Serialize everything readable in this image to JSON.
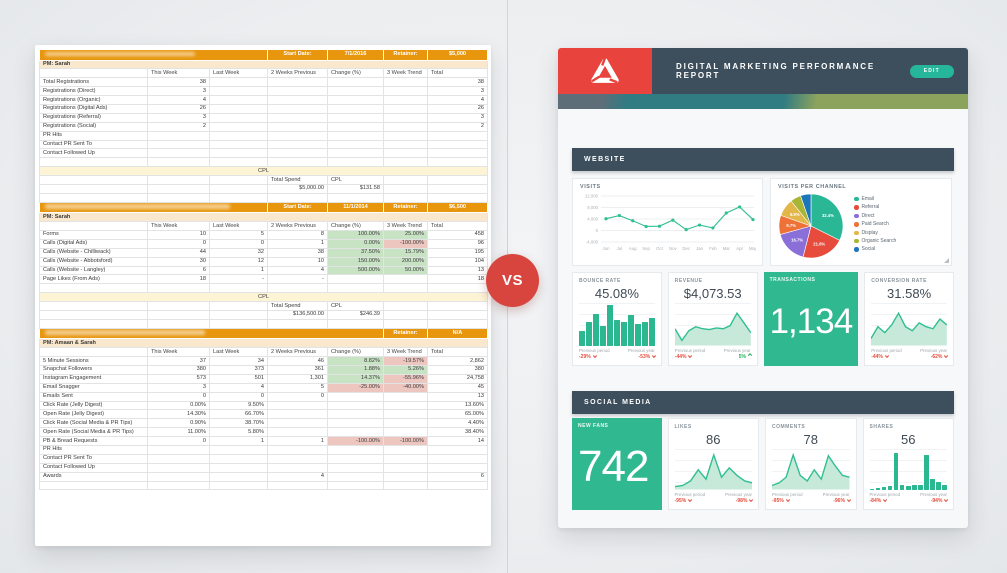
{
  "vs_label": "VS",
  "spreadsheet": {
    "sections": [
      {
        "rows": [
          {
            "type": "client",
            "span": 3,
            "rw": 150,
            "cells": [
              "Start Date:",
              "7/1/2016",
              "Retainer:",
              "$5,000"
            ]
          },
          {
            "type": "pm",
            "text": "PM: Sarah"
          },
          {
            "type": "cols",
            "cells": [
              "",
              "This Week",
              "Last Week",
              "2 Weeks Previous",
              "Change (%)",
              "3 Week Trend",
              "Total"
            ]
          },
          {
            "type": "row",
            "cells": [
              "Total Registrations",
              "38",
              "",
              "",
              "",
              "",
              "38"
            ]
          },
          {
            "type": "row",
            "cells": [
              "Registrations (Direct)",
              "3",
              "",
              "",
              "",
              "",
              "3"
            ]
          },
          {
            "type": "row",
            "cells": [
              "Registrations (Organic)",
              "4",
              "",
              "",
              "",
              "",
              "4"
            ]
          },
          {
            "type": "row",
            "cells": [
              "Registrations (Digital Ads)",
              "26",
              "",
              "",
              "",
              "",
              "26"
            ]
          },
          {
            "type": "row",
            "cells": [
              "Registrations (Referral)",
              "3",
              "",
              "",
              "",
              "",
              "3"
            ]
          },
          {
            "type": "row",
            "cells": [
              "Registrations (Social)",
              "2",
              "",
              "",
              "",
              "",
              "2"
            ]
          },
          {
            "type": "row",
            "cells": [
              "PR Hits",
              "",
              "",
              "",
              "",
              "",
              ""
            ]
          },
          {
            "type": "row",
            "cells": [
              "Contact PR Sent To",
              "",
              "",
              "",
              "",
              "",
              ""
            ]
          },
          {
            "type": "row",
            "cells": [
              "Contact Followed Up",
              "",
              "",
              "",
              "",
              "",
              ""
            ]
          },
          {
            "type": "blank"
          },
          {
            "type": "cpl",
            "text": "CPL"
          },
          {
            "type": "lrow",
            "cells": [
              "",
              "",
              "",
              "Total Spend",
              "CPL",
              "",
              ""
            ]
          },
          {
            "type": "row",
            "cells": [
              "",
              "",
              "",
              "$5,000.00",
              "$131.58",
              "",
              ""
            ]
          },
          {
            "type": "blank"
          }
        ]
      },
      {
        "rows": [
          {
            "type": "client",
            "span": 3,
            "rw": 185,
            "cells": [
              "Start Date:",
              "11/1/2014",
              "Retainer:",
              "$6,500"
            ]
          },
          {
            "type": "pm",
            "text": "PM: Sarah"
          },
          {
            "type": "cols",
            "cells": [
              "",
              "This Week",
              "Last Week",
              "2 Weeks Previous",
              "Change (%)",
              "3 Week Trend",
              "Total"
            ]
          },
          {
            "type": "row",
            "cells": [
              "Forms",
              "10",
              "5",
              "8",
              "100.00%",
              "25.00%",
              "458"
            ],
            "h": {
              "4": "g",
              "5": "g"
            }
          },
          {
            "type": "row",
            "cells": [
              "Calls (Digital Ads)",
              "0",
              "0",
              "1",
              "0.00%",
              "-100.00%",
              "96"
            ],
            "h": {
              "4": "g",
              "5": "r"
            }
          },
          {
            "type": "row",
            "cells": [
              "Calls (Website - Chilliwack)",
              "44",
              "32",
              "38",
              "37.50%",
              "15.79%",
              "195"
            ],
            "h": {
              "4": "g",
              "5": "g"
            }
          },
          {
            "type": "row",
            "cells": [
              "Calls (Website - Abbotsford)",
              "30",
              "12",
              "10",
              "150.00%",
              "200.00%",
              "104"
            ],
            "h": {
              "4": "g",
              "5": "g"
            }
          },
          {
            "type": "row",
            "cells": [
              "Calls (Website - Langley)",
              "6",
              "1",
              "4",
              "500.00%",
              "50.00%",
              "13"
            ],
            "h": {
              "4": "g",
              "5": "g"
            }
          },
          {
            "type": "row",
            "cells": [
              "Page Likes (From Ads)",
              "18",
              "-",
              "-",
              "",
              "",
              "18"
            ]
          },
          {
            "type": "blank"
          },
          {
            "type": "cpl",
            "text": "CPL"
          },
          {
            "type": "lrow",
            "cells": [
              "",
              "",
              "",
              "Total Spend",
              "CPL",
              "",
              ""
            ]
          },
          {
            "type": "row",
            "cells": [
              "",
              "",
              "",
              "$136,500.00",
              "$246.39",
              "",
              ""
            ]
          },
          {
            "type": "blank"
          }
        ]
      },
      {
        "rows": [
          {
            "type": "client",
            "span": 5,
            "rw": 160,
            "cells": [
              "Retainer:",
              "N/A"
            ]
          },
          {
            "type": "pm",
            "text": "PM: Amaan & Sarah"
          },
          {
            "type": "cols",
            "cells": [
              "",
              "This Week",
              "Last Week",
              "2 Weeks Previous",
              "Change (%)",
              "3 Week Trend",
              "Total"
            ]
          },
          {
            "type": "row",
            "cells": [
              "5 Minute Sessions",
              "37",
              "34",
              "46",
              "8.82%",
              "-19.57%",
              "2,862"
            ],
            "h": {
              "4": "g",
              "5": "r"
            }
          },
          {
            "type": "row",
            "cells": [
              "Snapchat Followers",
              "380",
              "373",
              "361",
              "1.88%",
              "5.26%",
              "380"
            ],
            "h": {
              "4": "g",
              "5": "g"
            }
          },
          {
            "type": "row",
            "cells": [
              "Instagram Engagement",
              "573",
              "501",
              "1,301",
              "14.37%",
              "-55.96%",
              "24,758"
            ],
            "h": {
              "4": "g",
              "5": "r"
            }
          },
          {
            "type": "row",
            "cells": [
              "Email Snagger",
              "3",
              "4",
              "5",
              "-25.00%",
              "-40.00%",
              "45"
            ],
            "h": {
              "4": "r",
              "5": "r"
            }
          },
          {
            "type": "row",
            "cells": [
              "Emails Sent",
              "0",
              "0",
              "0",
              "",
              "",
              "13"
            ]
          },
          {
            "type": "row",
            "cells": [
              "Click Rate (Jelly Digest)",
              "0.00%",
              "9.50%",
              "",
              "",
              "",
              "13.60%"
            ]
          },
          {
            "type": "row",
            "cells": [
              "Open Rate (Jelly Digest)",
              "14.30%",
              "66.70%",
              "",
              "",
              "",
              "65.00%"
            ]
          },
          {
            "type": "row",
            "cells": [
              "Click Rate (Social Media & PR Tips)",
              "0.90%",
              "38.70%",
              "",
              "",
              "",
              "4.40%"
            ]
          },
          {
            "type": "row",
            "cells": [
              "Open Rate (Social Media & PR Tips)",
              "11.00%",
              "5.80%",
              "",
              "",
              "",
              "38.40%"
            ]
          },
          {
            "type": "row",
            "cells": [
              "PB & Bread Requests",
              "0",
              "1",
              "1",
              "-100.00%",
              "-100.00%",
              "14"
            ],
            "h": {
              "4": "r",
              "5": "r"
            }
          },
          {
            "type": "row",
            "cells": [
              "PR Hits",
              "",
              "",
              "",
              "",
              "",
              ""
            ]
          },
          {
            "type": "row",
            "cells": [
              "Contact PR Sent To",
              "",
              "",
              "",
              "",
              "",
              ""
            ]
          },
          {
            "type": "row",
            "cells": [
              "Contact Followed Up",
              "",
              "",
              "",
              "",
              "",
              ""
            ]
          },
          {
            "type": "row",
            "cells": [
              "Awards",
              "",
              "",
              "4",
              "",
              "",
              "6"
            ]
          },
          {
            "type": "blank"
          }
        ]
      }
    ]
  },
  "dashboard": {
    "title": "DIGITAL MARKETING PERFORMANCE REPORT",
    "edit_label": "EDIT",
    "website_label": "WEBSITE",
    "social_label": "SOCIAL MEDIA",
    "footer_labels": {
      "previous_period": "Previous period",
      "previous_year": "Previous year"
    },
    "accent_green": "#30b890",
    "header_color": "#3d4f5d",
    "logo_color": "#e8433c",
    "visits": {
      "label": "VISITS",
      "type": "line",
      "x": [
        "Jun",
        "Jul",
        "Aug",
        "Sep",
        "Oct",
        "Nov",
        "Dec",
        "Jan",
        "Feb",
        "Mar",
        "Apr",
        "May"
      ],
      "values": [
        4100,
        5200,
        3400,
        1400,
        1500,
        3600,
        300,
        1900,
        900,
        6100,
        8200,
        3800
      ],
      "yticks": [
        "12,000",
        "8,000",
        "4,000",
        "0",
        "-4,000"
      ],
      "ylim": [
        -4000,
        12000
      ]
    },
    "visits_per_channel": {
      "label": "VISITS PER CHANNEL",
      "type": "pie",
      "slices": [
        {
          "name": "Email",
          "pct": 32.4,
          "color": "#29b796",
          "labeled": true
        },
        {
          "name": "Referral",
          "pct": 21.6,
          "color": "#e64b3b",
          "labeled": true
        },
        {
          "name": "Direct",
          "pct": 16.7,
          "color": "#8b6fd8",
          "labeled": true
        },
        {
          "name": "Paid Search",
          "pct": 9.7,
          "color": "#ee7138",
          "labeled": true
        },
        {
          "name": "Display",
          "pct": 8.9,
          "color": "#e3b64a",
          "labeled": true
        },
        {
          "name": "Organic Search",
          "pct": 5.4,
          "color": "#a9b534",
          "labeled": false
        },
        {
          "name": "Social",
          "pct": 5.3,
          "color": "#1b76ba",
          "labeled": false
        }
      ]
    },
    "kpis": [
      {
        "label": "BOUNCE RATE",
        "value": "45.08%",
        "chart": "bars",
        "data": [
          35,
          55,
          75,
          45,
          95,
          60,
          55,
          72,
          50,
          55,
          65
        ],
        "pp": "-29%",
        "pp_dir": "down",
        "py": "-53%",
        "py_dir": "down"
      },
      {
        "label": "REVENUE",
        "value": "$4,073.53",
        "chart": "area",
        "data": [
          40,
          10,
          35,
          45,
          40,
          38,
          42,
          40,
          48,
          80,
          55,
          30
        ],
        "pp": "-44%",
        "pp_dir": "down",
        "py": "5%",
        "py_dir": "up"
      },
      {
        "label": "TRANSACTIONS",
        "value": "1,134",
        "highlight": true
      },
      {
        "label": "CONVERSION RATE",
        "value": "31.58%",
        "chart": "area",
        "data": [
          15,
          45,
          30,
          50,
          80,
          45,
          35,
          55,
          45,
          40,
          65,
          50
        ],
        "pp": "-44%",
        "pp_dir": "down",
        "py": "-62%",
        "py_dir": "down"
      }
    ],
    "social": [
      {
        "label": "NEW FANS",
        "value": "742",
        "highlight": true
      },
      {
        "label": "LIKES",
        "value": "86",
        "chart": "area",
        "data": [
          5,
          8,
          20,
          50,
          25,
          90,
          30,
          55,
          35,
          20,
          15
        ],
        "pp": "-95%",
        "pp_dir": "down",
        "py": "-98%",
        "py_dir": "down"
      },
      {
        "label": "COMMENTS",
        "value": "78",
        "chart": "area",
        "data": [
          8,
          15,
          30,
          90,
          35,
          20,
          50,
          25,
          88,
          60,
          35,
          30
        ],
        "pp": "-95%",
        "pp_dir": "down",
        "py": "-96%",
        "py_dir": "down"
      },
      {
        "label": "SHARES",
        "value": "56",
        "chart": "bars",
        "data": [
          2,
          4,
          5,
          8,
          90,
          10,
          8,
          12,
          10,
          85,
          25,
          18,
          12
        ],
        "pp": "-84%",
        "pp_dir": "down",
        "py": "-94%",
        "py_dir": "down"
      }
    ]
  }
}
